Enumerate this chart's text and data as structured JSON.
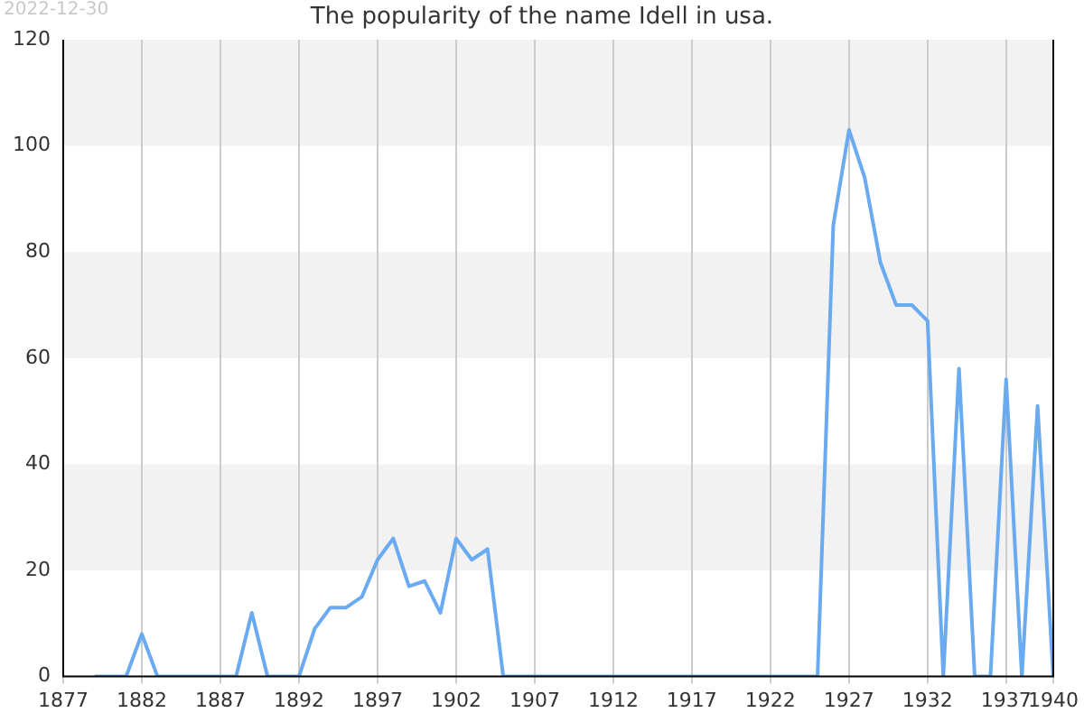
{
  "chart_data": {
    "type": "line",
    "title": "The popularity of the name Idell in usa.",
    "annotations": [
      "2022-12-30"
    ],
    "x": [
      1879,
      1880,
      1881,
      1882,
      1883,
      1884,
      1885,
      1886,
      1887,
      1888,
      1889,
      1890,
      1891,
      1892,
      1893,
      1894,
      1895,
      1896,
      1897,
      1898,
      1899,
      1900,
      1901,
      1902,
      1903,
      1904,
      1905,
      1906,
      1907,
      1908,
      1909,
      1910,
      1911,
      1912,
      1913,
      1914,
      1915,
      1916,
      1917,
      1918,
      1919,
      1920,
      1921,
      1922,
      1923,
      1924,
      1925,
      1926,
      1927,
      1928,
      1929,
      1930,
      1931,
      1932,
      1933,
      1934,
      1935,
      1936,
      1937,
      1938,
      1939,
      1940
    ],
    "series": [
      {
        "color": "#6aaaf0",
        "values": [
          0,
          0,
          0,
          8,
          0,
          0,
          0,
          0,
          0,
          0,
          12,
          0,
          0,
          0,
          9,
          13,
          13,
          15,
          22,
          26,
          17,
          18,
          12,
          26,
          22,
          24,
          0,
          0,
          0,
          0,
          0,
          0,
          0,
          0,
          0,
          0,
          0,
          0,
          0,
          0,
          0,
          0,
          0,
          0,
          0,
          0,
          0,
          85,
          103,
          94,
          78,
          70,
          70,
          67,
          0,
          58,
          0,
          0,
          56,
          0,
          51,
          0
        ]
      }
    ],
    "xlim": [
      1877,
      1940
    ],
    "xticks": [
      1877,
      1882,
      1887,
      1892,
      1897,
      1902,
      1907,
      1912,
      1917,
      1922,
      1927,
      1932,
      1937,
      1940
    ],
    "ylim": [
      0,
      120
    ],
    "yticks": [
      0,
      20,
      40,
      60,
      80,
      100,
      120
    ],
    "grid": true,
    "legend": false,
    "marker": "none",
    "line_style": "solid"
  }
}
